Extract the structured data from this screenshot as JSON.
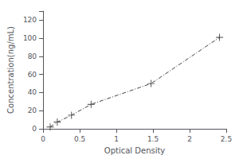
{
  "chart_data": {
    "type": "line",
    "x": [
      0.097,
      0.194,
      0.388,
      0.655,
      1.475,
      2.408
    ],
    "values": [
      2.0,
      7.5,
      15.0,
      27.0,
      50.0,
      101.0
    ],
    "xlabel": "Optical Density",
    "ylabel": "Concentration(ng/mL)",
    "xlim": [
      0,
      2.5
    ],
    "ylim": [
      0,
      130
    ],
    "xticks": [
      0,
      0.5,
      1,
      1.5,
      2,
      2.5
    ],
    "yticks": [
      0,
      20,
      40,
      60,
      80,
      100,
      120
    ],
    "color": "#444444",
    "marker": "plus",
    "line_style": "dashdot",
    "grid": false
  }
}
